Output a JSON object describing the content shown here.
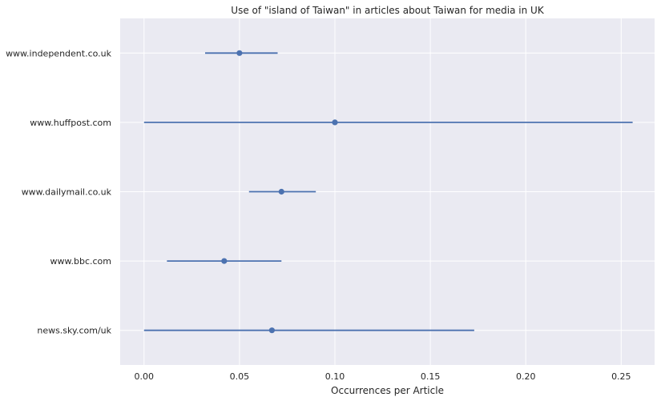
{
  "chart_data": {
    "type": "scatter",
    "title": "Use of \"island of Taiwan\" in articles about Taiwan for media in UK",
    "xlabel": "Occurrences per Article",
    "ylabel": "",
    "xlim": [
      -0.0125,
      0.2675
    ],
    "x_ticks": [
      0.0,
      0.05,
      0.1,
      0.15,
      0.2,
      0.25
    ],
    "x_tick_labels": [
      "0.00",
      "0.05",
      "0.10",
      "0.15",
      "0.20",
      "0.25"
    ],
    "categories": [
      "www.independent.co.uk",
      "www.huffpost.com",
      "www.dailymail.co.uk",
      "www.bbc.com",
      "news.sky.com/uk"
    ],
    "series": [
      {
        "values": [
          0.05,
          0.1,
          0.072,
          0.042,
          0.067
        ],
        "ci_low": [
          0.032,
          0.0,
          0.055,
          0.012,
          0.0
        ],
        "ci_high": [
          0.07,
          0.256,
          0.09,
          0.072,
          0.173
        ]
      }
    ],
    "grid": true,
    "colors": {
      "background": "#eaeaf2",
      "grid": "#ffffff",
      "series": "#4c72b0"
    }
  }
}
